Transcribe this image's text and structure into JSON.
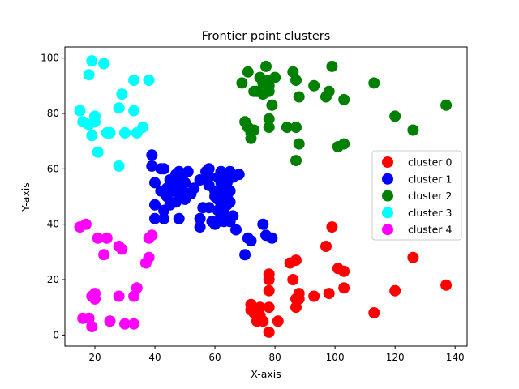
{
  "chart_data": {
    "type": "scatter",
    "title": "Frontier point clusters",
    "xlabel": "X-axis",
    "ylabel": "Y-axis",
    "xlim": [
      10,
      144
    ],
    "ylim": [
      -4,
      104
    ],
    "xticks": [
      20,
      40,
      60,
      80,
      100,
      120,
      140
    ],
    "yticks": [
      0,
      20,
      40,
      60,
      80,
      100
    ],
    "grid": false,
    "legend_position": "center-right",
    "series": [
      {
        "name": "cluster 0",
        "color": "#ff0000",
        "points": [
          [
            72,
            11
          ],
          [
            72,
            9
          ],
          [
            73,
            8
          ],
          [
            74,
            5
          ],
          [
            75,
            10
          ],
          [
            75,
            7
          ],
          [
            76,
            5
          ],
          [
            78,
            1
          ],
          [
            78,
            22
          ],
          [
            78,
            20
          ],
          [
            78,
            16
          ],
          [
            78,
            10
          ],
          [
            81,
            5
          ],
          [
            85,
            26
          ],
          [
            86,
            20
          ],
          [
            87,
            27
          ],
          [
            87,
            13
          ],
          [
            87,
            10
          ],
          [
            88,
            15
          ],
          [
            88,
            13
          ],
          [
            93,
            14
          ],
          [
            97,
            32
          ],
          [
            98,
            15
          ],
          [
            99,
            39
          ],
          [
            101,
            24
          ],
          [
            103,
            23
          ],
          [
            103,
            17
          ],
          [
            113,
            8
          ],
          [
            120,
            16
          ],
          [
            126,
            28
          ],
          [
            137,
            18
          ]
        ]
      },
      {
        "name": "cluster 1",
        "color": "#0000ff",
        "points": [
          [
            39,
            65
          ],
          [
            39,
            61
          ],
          [
            40,
            55
          ],
          [
            40,
            47
          ],
          [
            40,
            42
          ],
          [
            42,
            60
          ],
          [
            42,
            52
          ],
          [
            43,
            60
          ],
          [
            43,
            45
          ],
          [
            43,
            42
          ],
          [
            44,
            53
          ],
          [
            44,
            50
          ],
          [
            45,
            56
          ],
          [
            45,
            47
          ],
          [
            46,
            55
          ],
          [
            46,
            52
          ],
          [
            47,
            58
          ],
          [
            47,
            52
          ],
          [
            47,
            48
          ],
          [
            48,
            59
          ],
          [
            48,
            55
          ],
          [
            48,
            50
          ],
          [
            48,
            42
          ],
          [
            49,
            57
          ],
          [
            49,
            53
          ],
          [
            50,
            55
          ],
          [
            50,
            49
          ],
          [
            51,
            59
          ],
          [
            51,
            51
          ],
          [
            52,
            51
          ],
          [
            53,
            53
          ],
          [
            55,
            56
          ],
          [
            55,
            42
          ],
          [
            55,
            39
          ],
          [
            56,
            46
          ],
          [
            57,
            59
          ],
          [
            58,
            60
          ],
          [
            58,
            57
          ],
          [
            58,
            54
          ],
          [
            58,
            46
          ],
          [
            59,
            41
          ],
          [
            60,
            52
          ],
          [
            60,
            50
          ],
          [
            60,
            40
          ],
          [
            61,
            57
          ],
          [
            61,
            49
          ],
          [
            61,
            45
          ],
          [
            61,
            41
          ],
          [
            62,
            59
          ],
          [
            62,
            55
          ],
          [
            62,
            52
          ],
          [
            62,
            47
          ],
          [
            63,
            50
          ],
          [
            63,
            44
          ],
          [
            63,
            41
          ],
          [
            64,
            58
          ],
          [
            64,
            55
          ],
          [
            64,
            50
          ],
          [
            64,
            47
          ],
          [
            64,
            42
          ],
          [
            65,
            59
          ],
          [
            65,
            52
          ],
          [
            65,
            48
          ],
          [
            65,
            41
          ],
          [
            66,
            43
          ],
          [
            66,
            57
          ],
          [
            67,
            38
          ],
          [
            68,
            58
          ],
          [
            70,
            29
          ],
          [
            71,
            35
          ],
          [
            72,
            34
          ],
          [
            76,
            40
          ],
          [
            77,
            36
          ],
          [
            79,
            35
          ]
        ]
      },
      {
        "name": "cluster 2",
        "color": "#008000",
        "points": [
          [
            69,
            91
          ],
          [
            70,
            77
          ],
          [
            71,
            75
          ],
          [
            71,
            95
          ],
          [
            72,
            71
          ],
          [
            72,
            73
          ],
          [
            73,
            74
          ],
          [
            73,
            88
          ],
          [
            74,
            88
          ],
          [
            75,
            93
          ],
          [
            76,
            91
          ],
          [
            76,
            87
          ],
          [
            77,
            97
          ],
          [
            78,
            92
          ],
          [
            78,
            90
          ],
          [
            78,
            88
          ],
          [
            78,
            78
          ],
          [
            78,
            75
          ],
          [
            79,
            83
          ],
          [
            80,
            93
          ],
          [
            84,
            75
          ],
          [
            86,
            95
          ],
          [
            87,
            92
          ],
          [
            87,
            75
          ],
          [
            87,
            63
          ],
          [
            88,
            86
          ],
          [
            88,
            69
          ],
          [
            93,
            90
          ],
          [
            97,
            86
          ],
          [
            98,
            88
          ],
          [
            99,
            97
          ],
          [
            101,
            68
          ],
          [
            103,
            69
          ],
          [
            103,
            85
          ],
          [
            113,
            91
          ],
          [
            120,
            79
          ],
          [
            126,
            74
          ],
          [
            137,
            83
          ]
        ]
      },
      {
        "name": "cluster 3",
        "color": "#00ffff",
        "points": [
          [
            15,
            81
          ],
          [
            16,
            77
          ],
          [
            18,
            94
          ],
          [
            18,
            76
          ],
          [
            19,
            72
          ],
          [
            19,
            99
          ],
          [
            20,
            79
          ],
          [
            20,
            77
          ],
          [
            21,
            66
          ],
          [
            23,
            98
          ],
          [
            24,
            73
          ],
          [
            25,
            73
          ],
          [
            28,
            61
          ],
          [
            28,
            82
          ],
          [
            29,
            87
          ],
          [
            30,
            73
          ],
          [
            33,
            81
          ],
          [
            33,
            92
          ],
          [
            34,
            73
          ],
          [
            36,
            75
          ],
          [
            38,
            92
          ]
        ]
      },
      {
        "name": "cluster 4",
        "color": "#ff00ff",
        "points": [
          [
            15,
            39
          ],
          [
            16,
            6
          ],
          [
            17,
            40
          ],
          [
            18,
            6
          ],
          [
            19,
            3
          ],
          [
            19,
            14
          ],
          [
            20,
            15
          ],
          [
            20,
            13
          ],
          [
            21,
            35
          ],
          [
            23,
            29
          ],
          [
            24,
            35
          ],
          [
            25,
            5
          ],
          [
            28,
            14
          ],
          [
            28,
            32
          ],
          [
            29,
            31
          ],
          [
            30,
            4
          ],
          [
            33,
            4
          ],
          [
            33,
            14
          ],
          [
            34,
            17
          ],
          [
            37,
            26
          ],
          [
            38,
            28
          ],
          [
            38,
            35
          ],
          [
            39,
            36
          ]
        ]
      }
    ]
  }
}
